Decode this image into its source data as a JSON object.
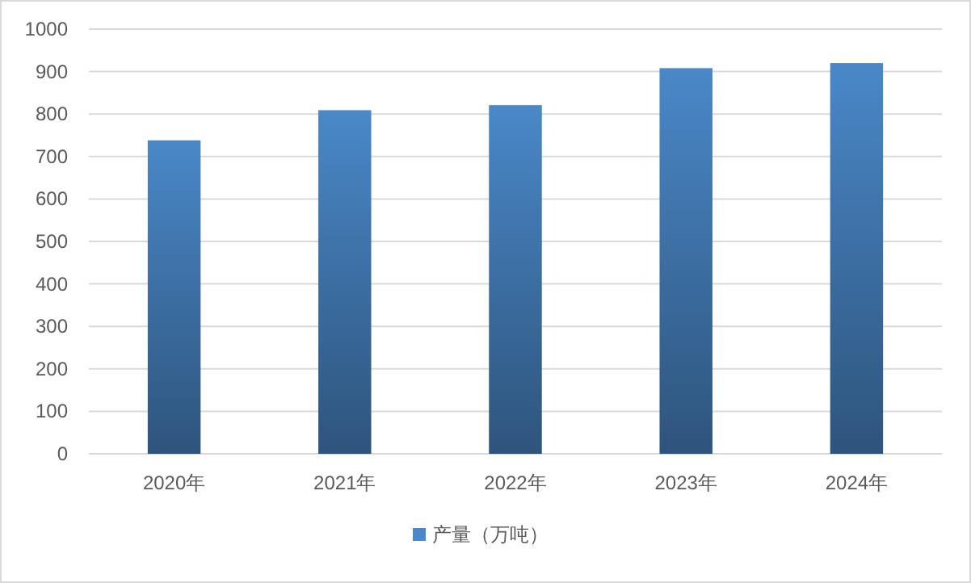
{
  "chart_data": {
    "type": "bar",
    "categories": [
      "2020年",
      "2021年",
      "2022年",
      "2023年",
      "2024年"
    ],
    "series": [
      {
        "name": "产量（万吨）",
        "color": "#4a88c8",
        "values": [
          738,
          809,
          821,
          908,
          920
        ]
      }
    ],
    "ylim": [
      0,
      1000
    ],
    "yticks": [
      0,
      100,
      200,
      300,
      400,
      500,
      600,
      700,
      800,
      900,
      1000
    ],
    "grid": "y",
    "legend": "bottom"
  }
}
